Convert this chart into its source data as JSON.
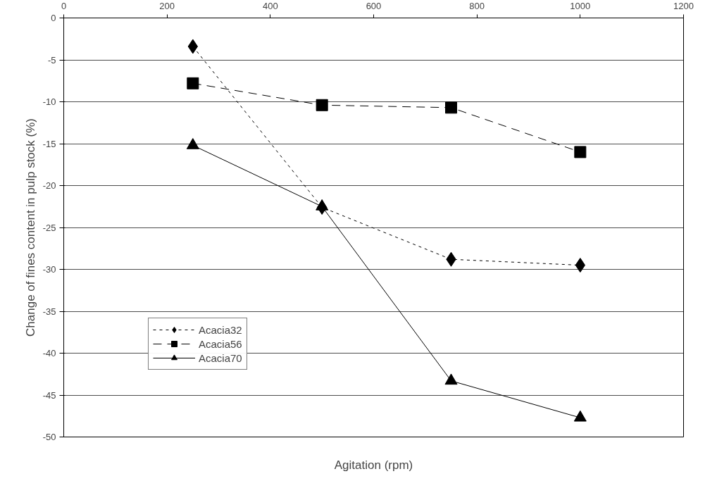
{
  "chart_data": {
    "type": "line",
    "xlabel": "Agitation (rpm)",
    "ylabel": "Change of fines content in pulp stock (%)",
    "x": [
      250,
      500,
      750,
      1000
    ],
    "xlim": [
      0,
      1200
    ],
    "xticks": [
      0,
      200,
      400,
      600,
      800,
      1000,
      1200
    ],
    "ylim": [
      -50,
      0
    ],
    "yticks": [
      0,
      -5,
      -10,
      -15,
      -20,
      -25,
      -30,
      -35,
      -40,
      -45,
      -50
    ],
    "grid": "y",
    "legend": "bottom left",
    "series": [
      {
        "name": "Acacia32",
        "color": "#000000",
        "marker": "diamond",
        "line_style": "dotted",
        "values": [
          -3.4,
          -22.6,
          -28.8,
          -29.5
        ]
      },
      {
        "name": "Acacia56",
        "color": "#000000",
        "marker": "square",
        "line_style": "dashed",
        "values": [
          -7.8,
          -10.4,
          -10.7,
          -16.0
        ]
      },
      {
        "name": "Acacia70",
        "color": "#000000",
        "marker": "triangle",
        "line_style": "solid",
        "values": [
          -15.2,
          -22.5,
          -43.3,
          -47.7
        ]
      }
    ]
  }
}
